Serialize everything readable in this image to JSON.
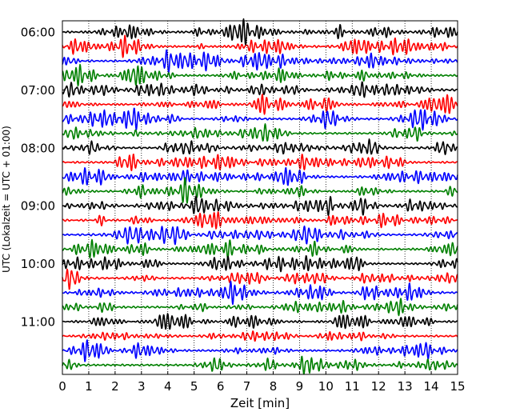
{
  "chart_data": {
    "type": "line",
    "title": "",
    "xlabel": "Zeit  [min]",
    "ylabel": "UTC (Lokalzeit = UTC + 01:00)",
    "xlim": [
      0,
      15
    ],
    "x_ticks": [
      "0",
      "1",
      "2",
      "3",
      "4",
      "5",
      "6",
      "7",
      "8",
      "9",
      "10",
      "11",
      "12",
      "13",
      "14",
      "15"
    ],
    "y_tick_labels": [
      "06:00",
      "07:00",
      "08:00",
      "09:00",
      "10:00",
      "11:00"
    ],
    "trace_start_times": [
      "06:00",
      "06:15",
      "06:30",
      "06:45",
      "07:00",
      "07:15",
      "07:30",
      "07:45",
      "08:00",
      "08:15",
      "08:30",
      "08:45",
      "09:00",
      "09:15",
      "09:30",
      "09:45",
      "10:00",
      "10:15",
      "10:30",
      "10:45",
      "11:00",
      "11:15",
      "11:30",
      "11:45"
    ],
    "trace_colors": [
      "#000000",
      "#ff0000",
      "#0000ff",
      "#008000"
    ],
    "grid": "vertical-dotted",
    "legend": "none"
  }
}
